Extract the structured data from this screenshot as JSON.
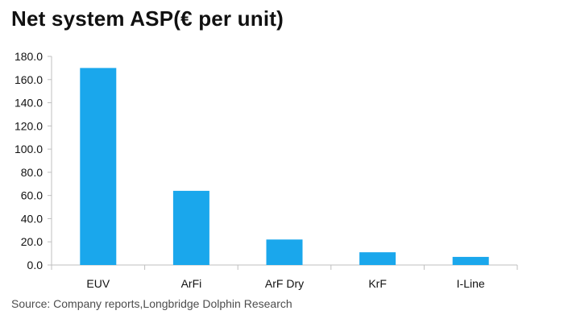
{
  "chart_data": {
    "type": "bar",
    "title": "Net system ASP(€ per unit)",
    "categories": [
      "EUV",
      "ArFi",
      "ArF Dry",
      "KrF",
      "I-Line"
    ],
    "values": [
      170.0,
      64.0,
      22.0,
      11.0,
      7.0
    ],
    "xlabel": "",
    "ylabel": "",
    "ylim": [
      0,
      180
    ],
    "y_ticks": [
      "0.0",
      "20.0",
      "40.0",
      "60.0",
      "80.0",
      "100.0",
      "120.0",
      "140.0",
      "160.0",
      "180.0"
    ],
    "y_tick_values": [
      0,
      20,
      40,
      60,
      80,
      100,
      120,
      140,
      160,
      180
    ],
    "grid": false,
    "legend": "none"
  },
  "source": "Source: Company reports,Longbridge Dolphin Research",
  "colors": {
    "bar": "#1aa7ec",
    "axis": "#bfbfbf",
    "text": "#111111"
  }
}
